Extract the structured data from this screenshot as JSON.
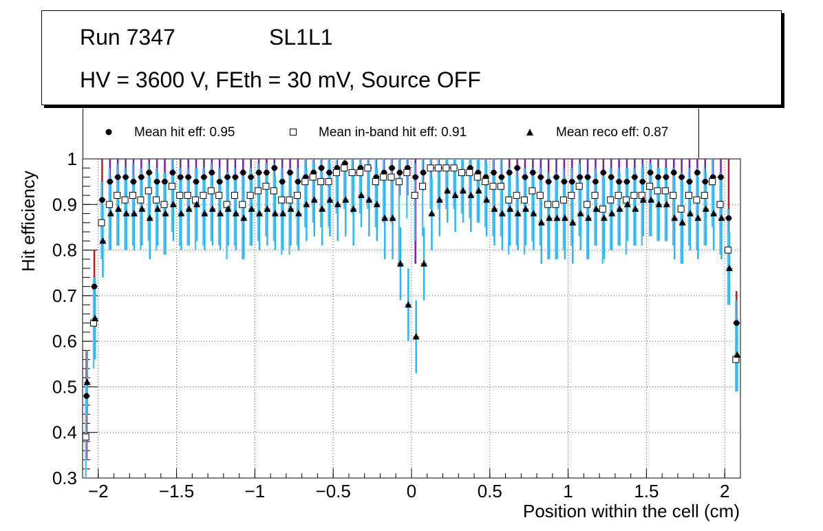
{
  "header": {
    "run_label": "Run 7347",
    "layer_label": "SL1L1",
    "conditions": "HV = 3600 V, FEth = 30 mV, Source OFF"
  },
  "legend": {
    "hit": "Mean hit  eff: 0.95",
    "inband": "Mean in-band hit eff: 0.91",
    "reco": "Mean reco eff: 0.87"
  },
  "colors": {
    "hit_err_low": "#7b1fa2",
    "hit_err_red": "#b71c1c",
    "inband_err": "#4fc3f7",
    "reco_err": "#29b6f6",
    "grid": "#555555"
  },
  "chart_data": {
    "type": "scatter",
    "title": "Run 7347  SL1L1 — HV = 3600 V, FEth = 30 mV, Source OFF",
    "xlabel": "Position within the cell (cm)",
    "ylabel": "Hit efficiency",
    "xlim": [
      -2.1,
      2.1
    ],
    "ylim": [
      0.3,
      1.0
    ],
    "xticks": [
      -2,
      -1.5,
      -1,
      -0.5,
      0,
      0.5,
      1,
      1.5,
      2
    ],
    "xtick_labels": [
      "−2",
      "−1.5",
      "−1",
      "−0.5",
      "0",
      "0.5",
      "1",
      "1.5",
      "2"
    ],
    "yticks": [
      0.3,
      0.4,
      0.5,
      0.6,
      0.7,
      0.8,
      0.9,
      1.0
    ],
    "ytick_labels": [
      "0.3",
      "0.4",
      "0.5",
      "0.6",
      "0.7",
      "0.8",
      "0.9",
      "1"
    ],
    "grid": true,
    "x": [
      -2.075,
      -2.025,
      -1.975,
      -1.925,
      -1.875,
      -1.825,
      -1.775,
      -1.725,
      -1.675,
      -1.625,
      -1.575,
      -1.525,
      -1.475,
      -1.425,
      -1.375,
      -1.325,
      -1.275,
      -1.225,
      -1.175,
      -1.125,
      -1.075,
      -1.025,
      -0.975,
      -0.925,
      -0.875,
      -0.825,
      -0.775,
      -0.725,
      -0.675,
      -0.625,
      -0.575,
      -0.525,
      -0.475,
      -0.425,
      -0.375,
      -0.325,
      -0.275,
      -0.225,
      -0.175,
      -0.125,
      -0.075,
      -0.025,
      0.025,
      0.075,
      0.125,
      0.175,
      0.225,
      0.275,
      0.325,
      0.375,
      0.425,
      0.475,
      0.525,
      0.575,
      0.625,
      0.675,
      0.725,
      0.775,
      0.825,
      0.875,
      0.925,
      0.975,
      1.025,
      1.075,
      1.125,
      1.175,
      1.225,
      1.275,
      1.325,
      1.375,
      1.425,
      1.475,
      1.525,
      1.575,
      1.625,
      1.675,
      1.725,
      1.775,
      1.825,
      1.875,
      1.925,
      1.975,
      2.025,
      2.075
    ],
    "series": [
      {
        "name": "Mean hit  eff: 0.95",
        "marker": "circle",
        "values": [
          0.48,
          0.72,
          0.91,
          0.95,
          0.96,
          0.96,
          0.95,
          0.96,
          0.97,
          0.95,
          0.95,
          0.97,
          0.96,
          0.96,
          0.95,
          0.96,
          0.97,
          0.95,
          0.96,
          0.96,
          0.97,
          0.96,
          0.97,
          0.97,
          0.98,
          0.95,
          0.97,
          0.95,
          0.96,
          0.97,
          0.98,
          0.97,
          0.98,
          0.99,
          0.97,
          0.98,
          0.98,
          0.96,
          0.97,
          0.98,
          0.97,
          0.98,
          0.96,
          0.97,
          0.98,
          0.98,
          0.98,
          0.98,
          0.97,
          0.98,
          0.97,
          0.96,
          0.97,
          0.96,
          0.97,
          0.98,
          0.96,
          0.97,
          0.96,
          0.95,
          0.96,
          0.95,
          0.95,
          0.96,
          0.96,
          0.95,
          0.97,
          0.96,
          0.95,
          0.95,
          0.96,
          0.95,
          0.97,
          0.96,
          0.96,
          0.97,
          0.96,
          0.95,
          0.97,
          0.95,
          0.96,
          0.96,
          0.87,
          0.64
        ],
        "err_low": [
          0.14,
          0.08,
          0.06,
          0.05,
          0.05,
          0.05,
          0.05,
          0.05,
          0.04,
          0.05,
          0.05,
          0.04,
          0.05,
          0.05,
          0.05,
          0.05,
          0.04,
          0.05,
          0.05,
          0.05,
          0.04,
          0.05,
          0.04,
          0.04,
          0.03,
          0.05,
          0.04,
          0.05,
          0.05,
          0.04,
          0.03,
          0.04,
          0.03,
          0.03,
          0.04,
          0.03,
          0.03,
          0.05,
          0.04,
          0.04,
          0.05,
          0.06,
          0.19,
          0.04,
          0.03,
          0.03,
          0.03,
          0.03,
          0.04,
          0.03,
          0.04,
          0.05,
          0.04,
          0.05,
          0.04,
          0.03,
          0.05,
          0.04,
          0.05,
          0.05,
          0.05,
          0.05,
          0.05,
          0.05,
          0.05,
          0.05,
          0.04,
          0.05,
          0.05,
          0.05,
          0.05,
          0.05,
          0.04,
          0.05,
          0.05,
          0.04,
          0.05,
          0.05,
          0.04,
          0.05,
          0.05,
          0.05,
          0.08,
          0.14
        ],
        "err_high": [
          0.1,
          0.08,
          0.09,
          0.05,
          0.04,
          0.04,
          0.05,
          0.04,
          0.03,
          0.05,
          0.05,
          0.03,
          0.04,
          0.04,
          0.05,
          0.04,
          0.03,
          0.05,
          0.04,
          0.04,
          0.03,
          0.04,
          0.03,
          0.03,
          0.02,
          0.05,
          0.03,
          0.05,
          0.04,
          0.03,
          0.02,
          0.03,
          0.02,
          0.01,
          0.03,
          0.02,
          0.02,
          0.04,
          0.03,
          0.02,
          0.03,
          0.02,
          0.04,
          0.03,
          0.02,
          0.02,
          0.02,
          0.02,
          0.03,
          0.02,
          0.03,
          0.04,
          0.03,
          0.04,
          0.03,
          0.02,
          0.04,
          0.03,
          0.04,
          0.05,
          0.04,
          0.05,
          0.05,
          0.04,
          0.04,
          0.05,
          0.03,
          0.04,
          0.05,
          0.05,
          0.04,
          0.05,
          0.03,
          0.04,
          0.04,
          0.03,
          0.04,
          0.05,
          0.03,
          0.05,
          0.04,
          0.04,
          0.13,
          0.07
        ]
      },
      {
        "name": "Mean in-band hit eff: 0.91",
        "marker": "open-square",
        "values": [
          0.39,
          0.64,
          0.86,
          0.9,
          0.92,
          0.91,
          0.92,
          0.91,
          0.93,
          0.91,
          0.9,
          0.94,
          0.92,
          0.92,
          0.91,
          0.92,
          0.93,
          0.92,
          0.9,
          0.92,
          0.9,
          0.92,
          0.93,
          0.94,
          0.93,
          0.91,
          0.91,
          0.92,
          0.95,
          0.96,
          0.95,
          0.95,
          0.97,
          0.98,
          0.97,
          0.97,
          0.98,
          0.95,
          0.96,
          0.96,
          0.95,
          0.97,
          0.92,
          0.94,
          0.98,
          0.98,
          0.98,
          0.98,
          0.97,
          0.97,
          0.96,
          0.95,
          0.94,
          0.94,
          0.91,
          0.92,
          0.91,
          0.93,
          0.92,
          0.9,
          0.9,
          0.91,
          0.92,
          0.94,
          0.9,
          0.92,
          0.89,
          0.91,
          0.92,
          0.91,
          0.92,
          0.92,
          0.94,
          0.93,
          0.93,
          0.92,
          0.89,
          0.92,
          0.91,
          0.92,
          0.95,
          0.9,
          0.8,
          0.56
        ],
        "err_low": [
          0.12,
          0.1,
          0.08,
          0.1,
          0.11,
          0.11,
          0.11,
          0.11,
          0.11,
          0.11,
          0.11,
          0.1,
          0.11,
          0.11,
          0.11,
          0.11,
          0.11,
          0.11,
          0.12,
          0.11,
          0.12,
          0.11,
          0.11,
          0.11,
          0.11,
          0.12,
          0.12,
          0.11,
          0.1,
          0.1,
          0.1,
          0.1,
          0.09,
          0.09,
          0.09,
          0.09,
          0.09,
          0.1,
          0.1,
          0.1,
          0.18,
          0.1,
          0.1,
          0.11,
          0.09,
          0.09,
          0.09,
          0.09,
          0.09,
          0.1,
          0.1,
          0.1,
          0.11,
          0.11,
          0.12,
          0.11,
          0.12,
          0.11,
          0.11,
          0.12,
          0.12,
          0.11,
          0.11,
          0.11,
          0.12,
          0.11,
          0.12,
          0.11,
          0.11,
          0.12,
          0.11,
          0.11,
          0.11,
          0.11,
          0.11,
          0.11,
          0.12,
          0.11,
          0.11,
          0.11,
          0.1,
          0.11,
          0.12,
          0.07
        ],
        "err_high": [
          0.12,
          0.1,
          0.09,
          0.08,
          0.07,
          0.07,
          0.07,
          0.07,
          0.06,
          0.07,
          0.07,
          0.06,
          0.06,
          0.06,
          0.07,
          0.06,
          0.06,
          0.06,
          0.07,
          0.06,
          0.07,
          0.06,
          0.06,
          0.05,
          0.06,
          0.07,
          0.07,
          0.06,
          0.05,
          0.04,
          0.05,
          0.05,
          0.03,
          0.02,
          0.03,
          0.03,
          0.02,
          0.05,
          0.04,
          0.04,
          0.05,
          0.03,
          0.07,
          0.06,
          0.02,
          0.02,
          0.02,
          0.02,
          0.03,
          0.03,
          0.04,
          0.05,
          0.06,
          0.06,
          0.07,
          0.06,
          0.07,
          0.05,
          0.06,
          0.07,
          0.07,
          0.07,
          0.06,
          0.05,
          0.07,
          0.06,
          0.08,
          0.07,
          0.06,
          0.07,
          0.06,
          0.06,
          0.05,
          0.05,
          0.05,
          0.06,
          0.08,
          0.06,
          0.07,
          0.06,
          0.05,
          0.07,
          0.09,
          0.13
        ]
      },
      {
        "name": "Mean reco eff: 0.87",
        "marker": "triangle",
        "values": [
          0.51,
          0.65,
          0.82,
          0.88,
          0.89,
          0.88,
          0.88,
          0.89,
          0.87,
          0.89,
          0.88,
          0.9,
          0.88,
          0.89,
          0.9,
          0.88,
          0.89,
          0.88,
          0.89,
          0.88,
          0.87,
          0.89,
          0.88,
          0.89,
          0.88,
          0.88,
          0.89,
          0.88,
          0.9,
          0.91,
          0.89,
          0.91,
          0.9,
          0.91,
          0.89,
          0.92,
          0.91,
          0.9,
          0.87,
          0.87,
          0.77,
          0.68,
          0.61,
          0.77,
          0.88,
          0.91,
          0.93,
          0.92,
          0.93,
          0.92,
          0.93,
          0.91,
          0.89,
          0.88,
          0.89,
          0.88,
          0.89,
          0.88,
          0.86,
          0.87,
          0.87,
          0.87,
          0.86,
          0.88,
          0.87,
          0.89,
          0.87,
          0.88,
          0.89,
          0.9,
          0.89,
          0.91,
          0.91,
          0.9,
          0.9,
          0.87,
          0.86,
          0.88,
          0.87,
          0.89,
          0.88,
          0.87,
          0.76,
          0.57
        ],
        "err_low": [
          0.07,
          0.09,
          0.08,
          0.08,
          0.08,
          0.08,
          0.08,
          0.08,
          0.09,
          0.08,
          0.09,
          0.08,
          0.08,
          0.08,
          0.08,
          0.08,
          0.08,
          0.08,
          0.08,
          0.08,
          0.09,
          0.08,
          0.08,
          0.08,
          0.08,
          0.08,
          0.08,
          0.08,
          0.08,
          0.08,
          0.08,
          0.08,
          0.08,
          0.08,
          0.08,
          0.07,
          0.08,
          0.08,
          0.09,
          0.09,
          0.08,
          0.08,
          0.08,
          0.08,
          0.08,
          0.08,
          0.07,
          0.08,
          0.07,
          0.08,
          0.07,
          0.08,
          0.08,
          0.08,
          0.08,
          0.08,
          0.08,
          0.08,
          0.09,
          0.09,
          0.09,
          0.09,
          0.09,
          0.08,
          0.09,
          0.08,
          0.09,
          0.08,
          0.08,
          0.08,
          0.08,
          0.08,
          0.08,
          0.08,
          0.08,
          0.09,
          0.09,
          0.08,
          0.09,
          0.08,
          0.08,
          0.09,
          0.08,
          0.08
        ],
        "err_high": [
          0.07,
          0.09,
          0.08,
          0.08,
          0.08,
          0.08,
          0.08,
          0.08,
          0.09,
          0.08,
          0.09,
          0.08,
          0.08,
          0.08,
          0.08,
          0.08,
          0.08,
          0.08,
          0.08,
          0.08,
          0.09,
          0.08,
          0.08,
          0.08,
          0.08,
          0.08,
          0.08,
          0.08,
          0.08,
          0.08,
          0.08,
          0.08,
          0.08,
          0.08,
          0.08,
          0.07,
          0.08,
          0.08,
          0.09,
          0.09,
          0.08,
          0.08,
          0.08,
          0.08,
          0.08,
          0.08,
          0.07,
          0.08,
          0.07,
          0.08,
          0.07,
          0.08,
          0.08,
          0.08,
          0.08,
          0.08,
          0.08,
          0.08,
          0.09,
          0.09,
          0.09,
          0.09,
          0.09,
          0.08,
          0.09,
          0.08,
          0.09,
          0.08,
          0.08,
          0.08,
          0.08,
          0.08,
          0.08,
          0.08,
          0.08,
          0.09,
          0.09,
          0.08,
          0.09,
          0.08,
          0.08,
          0.09,
          0.08,
          0.08
        ]
      }
    ]
  }
}
